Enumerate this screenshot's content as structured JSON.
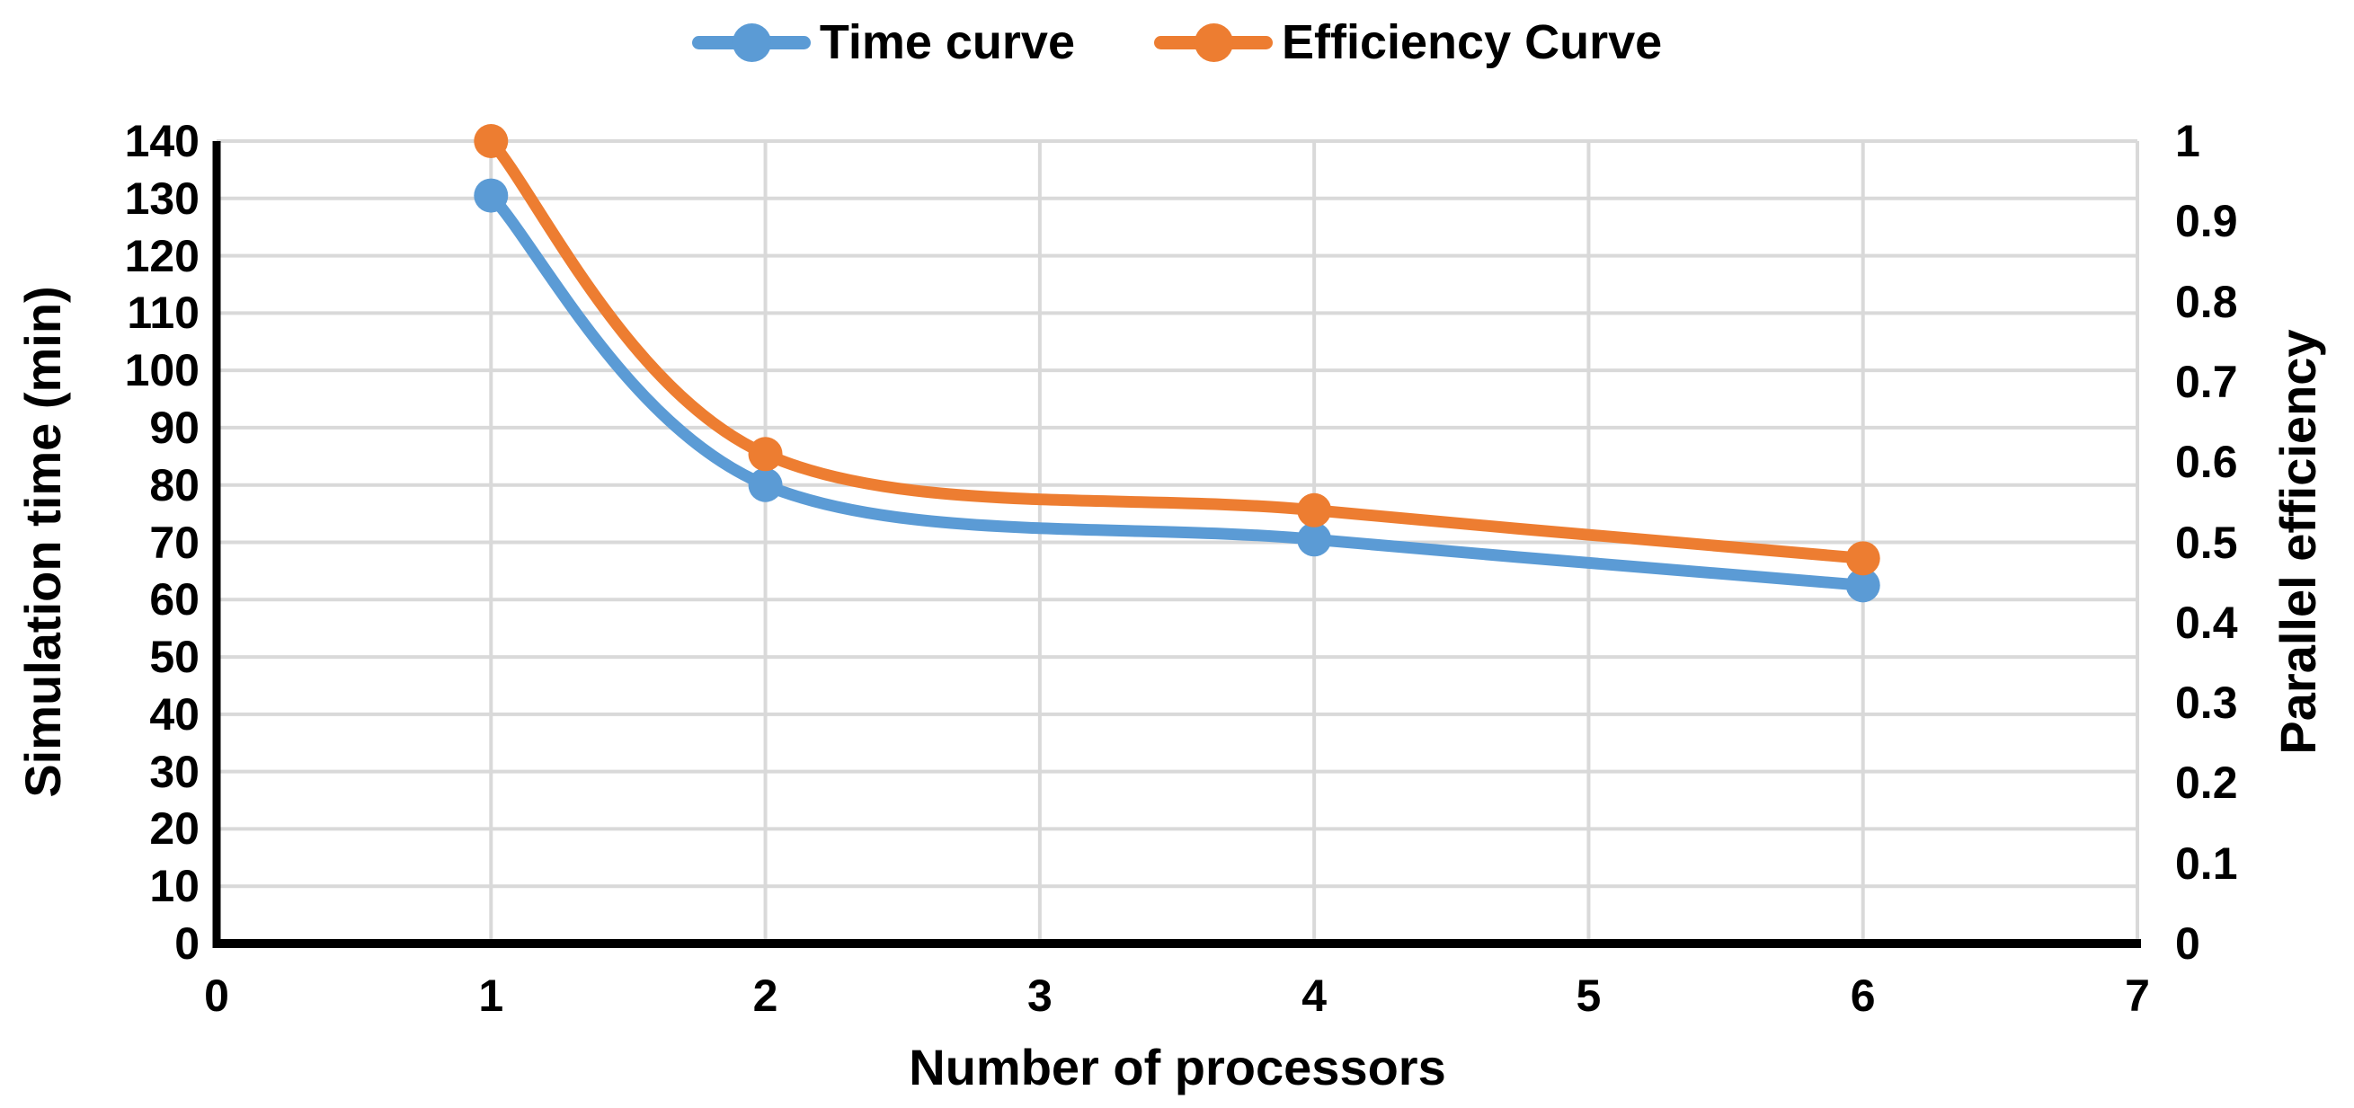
{
  "chart_data": {
    "type": "line",
    "title": "",
    "x": [
      1,
      2,
      4,
      6
    ],
    "series": [
      {
        "name": "Time curve",
        "axis": "left",
        "color": "#5B9BD5",
        "marker": "circle",
        "values": [
          130.5,
          80,
          70.5,
          62.5
        ]
      },
      {
        "name": "Efficiency Curve",
        "axis": "right",
        "color": "#ED7D31",
        "marker": "circle",
        "values": [
          1.0,
          0.61,
          0.54,
          0.48
        ]
      }
    ],
    "xlabel": "Number of processors",
    "ylabel_left": "Simulation time (min)",
    "ylabel_right": "Parallel efficiency",
    "xlim": [
      0,
      7
    ],
    "ylim_left": [
      0,
      140
    ],
    "ylim_right": [
      0,
      1
    ],
    "x_ticks": [
      "0",
      "1",
      "2",
      "3",
      "4",
      "5",
      "6",
      "7"
    ],
    "y_ticks_left": [
      "0",
      "10",
      "20",
      "30",
      "40",
      "50",
      "60",
      "70",
      "80",
      "90",
      "100",
      "110",
      "120",
      "130",
      "140"
    ],
    "y_ticks_right": [
      "0",
      "0.1",
      "0.2",
      "0.3",
      "0.4",
      "0.5",
      "0.6",
      "0.7",
      "0.8",
      "0.9",
      "1"
    ],
    "grid": true,
    "grid_color": "#D9D9D9",
    "axis_color": "#000000",
    "legend_position": "top",
    "line_smoothing": true
  }
}
